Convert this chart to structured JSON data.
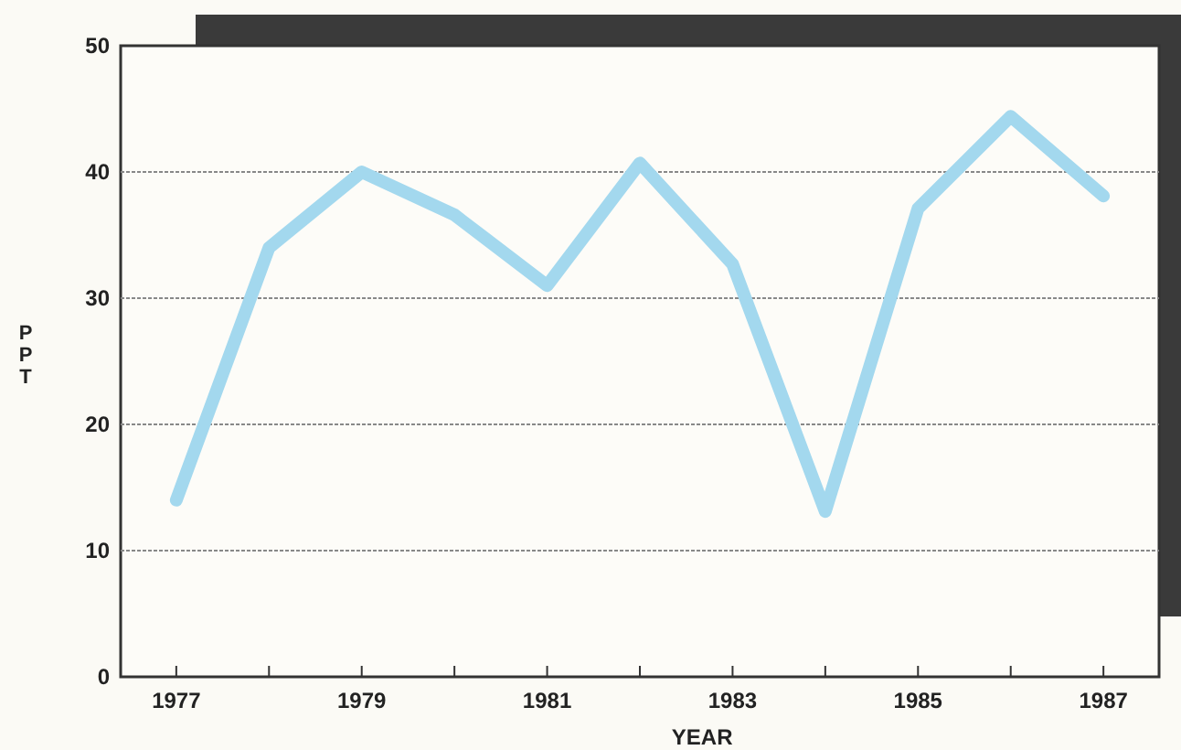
{
  "chart_data": {
    "type": "line",
    "xlabel": "YEAR",
    "ylabel": "PPT",
    "x": [
      1977,
      1978,
      1979,
      1980,
      1981,
      1982,
      1983,
      1984,
      1985,
      1986,
      1987
    ],
    "series": [
      {
        "color": "#a3d8ee",
        "values": [
          14,
          34,
          40,
          36.6,
          31,
          40.7,
          32.7,
          13.1,
          37.1,
          44.4,
          38.1
        ]
      }
    ],
    "xlim": [
      1976.4,
      1987.6
    ],
    "xticks": [
      1977,
      {
        "value": 1978,
        "label": null
      },
      1979,
      {
        "value": 1980,
        "label": null
      },
      1981,
      {
        "value": 1982,
        "label": null
      },
      1983,
      {
        "value": 1984,
        "label": null
      },
      1985,
      {
        "value": 1986,
        "label": null
      },
      1987
    ],
    "ylim": [
      0,
      50
    ],
    "yticks": [
      0,
      10,
      20,
      30,
      40,
      50
    ],
    "grid": "y",
    "marker": "none",
    "line_style": "solid"
  }
}
